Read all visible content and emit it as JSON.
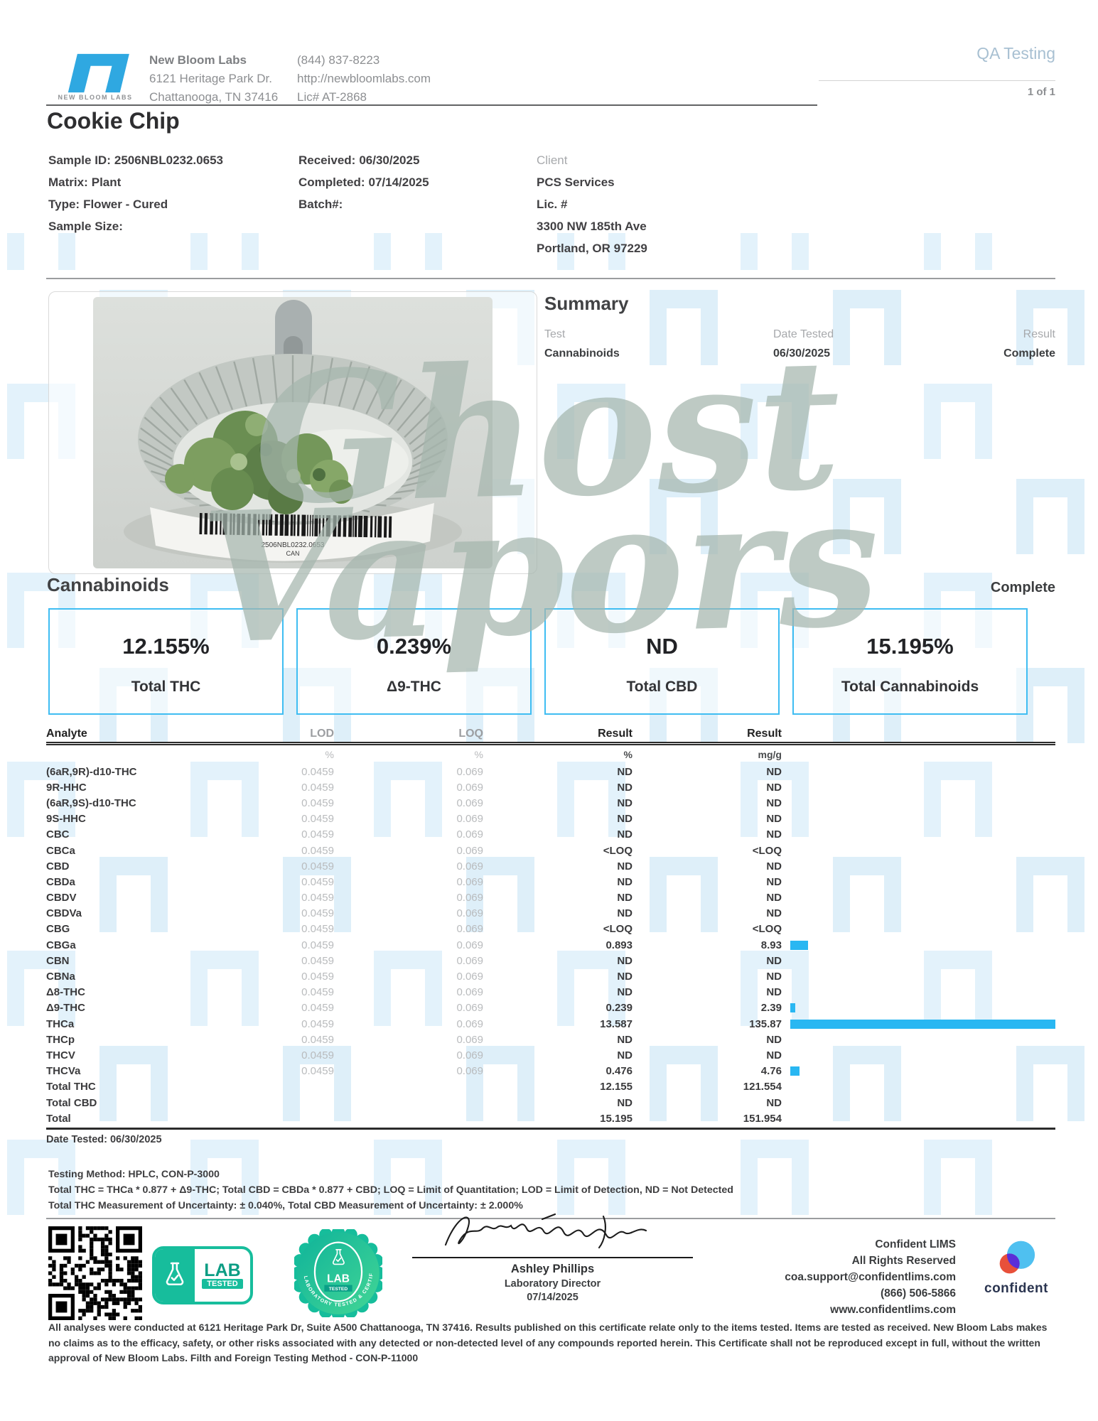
{
  "header": {
    "lab_name": "New Bloom Labs",
    "lab_address1": "6121 Heritage Park Dr.",
    "lab_address2": "Chattanooga, TN 37416",
    "lab_phone": "(844) 837-8223",
    "lab_website": "http://newbloomlabs.com",
    "lab_license": "Lic# AT-2868",
    "logo_caption": "NEW BLOOM LABS",
    "doc_type": "QA Testing",
    "page_indicator": "1 of 1"
  },
  "sample": {
    "name": "Cookie Chip",
    "left_fields": [
      {
        "label": "Sample ID:",
        "value": "2506NBL0232.0653"
      },
      {
        "label": "Matrix:",
        "value": "Plant"
      },
      {
        "label": "Type:",
        "value": "Flower - Cured"
      },
      {
        "label": "Sample Size:",
        "value": ""
      }
    ],
    "mid_fields": [
      {
        "label": "Received:",
        "value": "06/30/2025"
      },
      {
        "label": "Completed:",
        "value": "07/14/2025"
      },
      {
        "label": "Batch#:",
        "value": ""
      }
    ],
    "client": {
      "label": "Client",
      "name": "PCS Services",
      "line1": "Lic. #",
      "line2": "3300 NW 185th Ave",
      "line3": "Portland, OR 97229"
    }
  },
  "summary": {
    "title": "Summary",
    "col_test": "Test",
    "col_date": "Date Tested",
    "col_result": "Result",
    "rows": [
      {
        "test": "Cannabinoids",
        "date": "06/30/2025",
        "result": "Complete"
      }
    ]
  },
  "photo": {
    "barcode_text": "2506NBL0232.0653",
    "barcode_sub": "CAN"
  },
  "cannabinoids": {
    "title": "Cannabinoids",
    "status": "Complete",
    "boxes": [
      {
        "value": "12.155%",
        "label": "Total THC"
      },
      {
        "value": "0.239%",
        "label": "Δ9-THC"
      },
      {
        "value": "ND",
        "label": "Total CBD"
      },
      {
        "value": "15.195%",
        "label": "Total Cannabinoids"
      }
    ],
    "table": {
      "headers": {
        "analyte": "Analyte",
        "lod": "LOD",
        "loq": "LOQ",
        "result_pct": "Result",
        "result_mgg": "Result"
      },
      "units": {
        "lod": "%",
        "loq": "%",
        "result_pct": "%",
        "result_mgg": "mg/g"
      },
      "bar_max": 135.87,
      "rows": [
        {
          "analyte": "(6aR,9R)-d10-THC",
          "lod": "0.0459",
          "loq": "0.069",
          "pct": "ND",
          "mgg": "ND"
        },
        {
          "analyte": "9R-HHC",
          "lod": "0.0459",
          "loq": "0.069",
          "pct": "ND",
          "mgg": "ND"
        },
        {
          "analyte": "(6aR,9S)-d10-THC",
          "lod": "0.0459",
          "loq": "0.069",
          "pct": "ND",
          "mgg": "ND"
        },
        {
          "analyte": "9S-HHC",
          "lod": "0.0459",
          "loq": "0.069",
          "pct": "ND",
          "mgg": "ND"
        },
        {
          "analyte": "CBC",
          "lod": "0.0459",
          "loq": "0.069",
          "pct": "ND",
          "mgg": "ND"
        },
        {
          "analyte": "CBCa",
          "lod": "0.0459",
          "loq": "0.069",
          "pct": "<LOQ",
          "mgg": "<LOQ"
        },
        {
          "analyte": "CBD",
          "lod": "0.0459",
          "loq": "0.069",
          "pct": "ND",
          "mgg": "ND"
        },
        {
          "analyte": "CBDa",
          "lod": "0.0459",
          "loq": "0.069",
          "pct": "ND",
          "mgg": "ND"
        },
        {
          "analyte": "CBDV",
          "lod": "0.0459",
          "loq": "0.069",
          "pct": "ND",
          "mgg": "ND"
        },
        {
          "analyte": "CBDVa",
          "lod": "0.0459",
          "loq": "0.069",
          "pct": "ND",
          "mgg": "ND"
        },
        {
          "analyte": "CBG",
          "lod": "0.0459",
          "loq": "0.069",
          "pct": "<LOQ",
          "mgg": "<LOQ"
        },
        {
          "analyte": "CBGa",
          "lod": "0.0459",
          "loq": "0.069",
          "pct": "0.893",
          "mgg": "8.93",
          "bar": 8.93
        },
        {
          "analyte": "CBN",
          "lod": "0.0459",
          "loq": "0.069",
          "pct": "ND",
          "mgg": "ND"
        },
        {
          "analyte": "CBNa",
          "lod": "0.0459",
          "loq": "0.069",
          "pct": "ND",
          "mgg": "ND"
        },
        {
          "analyte": "Δ8-THC",
          "lod": "0.0459",
          "loq": "0.069",
          "pct": "ND",
          "mgg": "ND"
        },
        {
          "analyte": "Δ9-THC",
          "lod": "0.0459",
          "loq": "0.069",
          "pct": "0.239",
          "mgg": "2.39",
          "bar": 2.39
        },
        {
          "analyte": "THCa",
          "lod": "0.0459",
          "loq": "0.069",
          "pct": "13.587",
          "mgg": "135.87",
          "bar": 135.87
        },
        {
          "analyte": "THCp",
          "lod": "0.0459",
          "loq": "0.069",
          "pct": "ND",
          "mgg": "ND"
        },
        {
          "analyte": "THCV",
          "lod": "0.0459",
          "loq": "0.069",
          "pct": "ND",
          "mgg": "ND"
        },
        {
          "analyte": "THCVa",
          "lod": "0.0459",
          "loq": "0.069",
          "pct": "0.476",
          "mgg": "4.76",
          "bar": 4.76
        },
        {
          "analyte": "Total THC",
          "lod": "",
          "loq": "",
          "pct": "12.155",
          "mgg": "121.554"
        },
        {
          "analyte": "Total CBD",
          "lod": "",
          "loq": "",
          "pct": "ND",
          "mgg": "ND"
        },
        {
          "analyte": "Total",
          "lod": "",
          "loq": "",
          "pct": "15.195",
          "mgg": "151.954"
        }
      ],
      "date_tested": "Date Tested: 06/30/2025",
      "notes": [
        "Testing Method: HPLC, CON-P-3000",
        "Total THC = THCa * 0.877 + Δ9-THC; Total CBD = CBDa * 0.877 + CBD; LOQ = Limit of Quantitation; LOD = Limit of Detection, ND = Not Detected",
        "Total THC Measurement of Uncertainty: ± 0.040%, Total CBD Measurement of Uncertainty: ± 2.000%"
      ]
    }
  },
  "badges": {
    "lab_tested_line1": "LAB",
    "lab_tested_line2": "TESTED",
    "seal_line1": "LAB",
    "seal_line2": "TESTED",
    "seal_ring_text": "LABORATORY TESTED & CERTIFIED"
  },
  "signature": {
    "name": "Ashley Phillips",
    "title": "Laboratory Director",
    "date": "07/14/2025"
  },
  "lims": {
    "line1": "Confident LIMS",
    "line2": "All Rights Reserved",
    "line3": "coa.support@confidentlims.com",
    "line4": "(866) 506-5866",
    "line5": "www.confidentlims.com",
    "logo_text": "confident"
  },
  "watermark": {
    "line1": "Ghost",
    "line2": "Vapors"
  },
  "disclaimer": "All analyses were conducted at 6121 Heritage Park Dr, Suite A500 Chattanooga, TN 37416. Results published on this certificate relate only to the items tested. Items are tested as received. New Bloom Labs makes no claims as to the efficacy, safety, or other risks associated with any detected or non-detected level of any compounds reported herein. This Certificate shall not be reproduced except in full, without the written approval of New Bloom Labs. Filth and Foreign Testing Method - CON-P-11000"
}
